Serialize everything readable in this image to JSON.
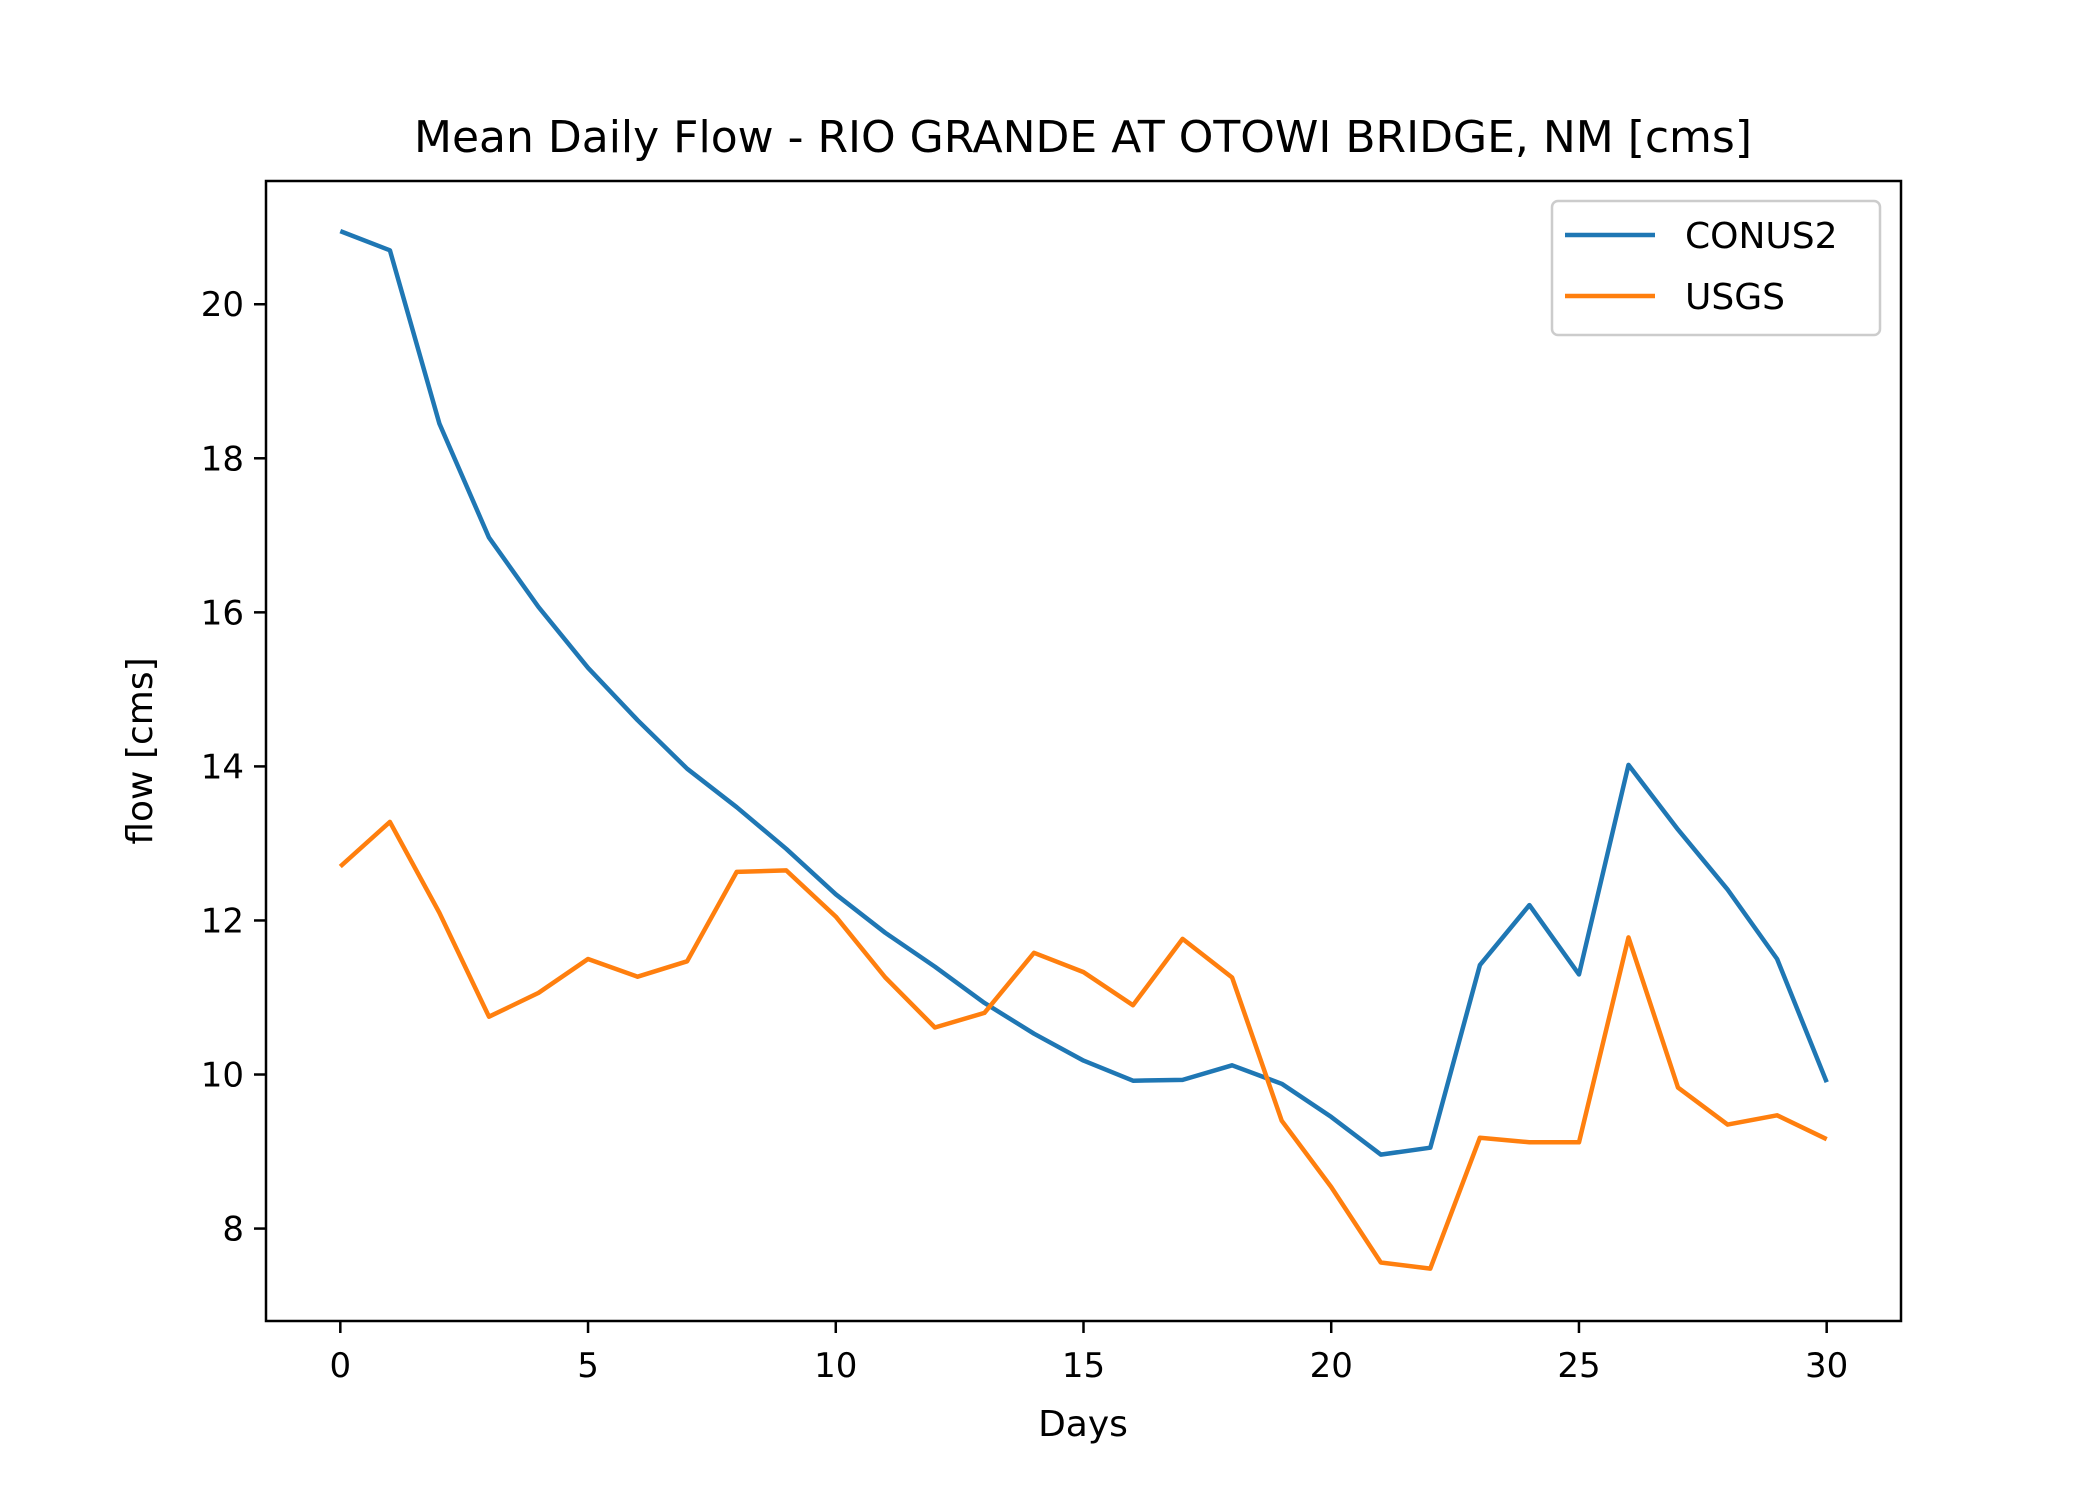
{
  "chart_data": {
    "type": "line",
    "title": "Mean Daily Flow - RIO GRANDE AT OTOWI BRIDGE, NM [cms]",
    "xlabel": "Days",
    "ylabel": "flow [cms]",
    "xlim": [
      -1.5,
      31.5
    ],
    "ylim": [
      6.8,
      21.6
    ],
    "xticks": [
      0,
      5,
      10,
      15,
      20,
      25,
      30
    ],
    "yticks": [
      8,
      10,
      12,
      14,
      16,
      18,
      20
    ],
    "legend_position": "upper right",
    "grid": false,
    "x": [
      0,
      1,
      2,
      3,
      4,
      5,
      6,
      7,
      8,
      9,
      10,
      11,
      12,
      13,
      14,
      15,
      16,
      17,
      18,
      19,
      20,
      21,
      22,
      23,
      24,
      25,
      26,
      27,
      28,
      29,
      30
    ],
    "series": [
      {
        "name": "CONUS2",
        "color": "#1f77b4",
        "values": [
          20.95,
          20.7,
          18.45,
          16.97,
          16.07,
          15.28,
          14.6,
          13.97,
          13.47,
          12.93,
          12.34,
          11.84,
          11.4,
          10.93,
          10.53,
          10.18,
          9.92,
          9.93,
          10.12,
          9.88,
          9.45,
          8.96,
          9.05,
          11.42,
          12.2,
          11.3,
          14.02,
          13.18,
          12.4,
          11.5,
          9.9
        ]
      },
      {
        "name": "USGS",
        "color": "#ff7f0e",
        "values": [
          12.7,
          13.28,
          12.1,
          10.75,
          11.06,
          11.5,
          11.27,
          11.47,
          12.63,
          12.65,
          12.05,
          11.26,
          10.61,
          10.8,
          11.58,
          11.33,
          10.9,
          11.76,
          11.26,
          9.4,
          8.54,
          7.56,
          7.48,
          9.18,
          9.12,
          9.12,
          11.78,
          9.83,
          9.35,
          9.47,
          9.16
        ]
      }
    ]
  }
}
